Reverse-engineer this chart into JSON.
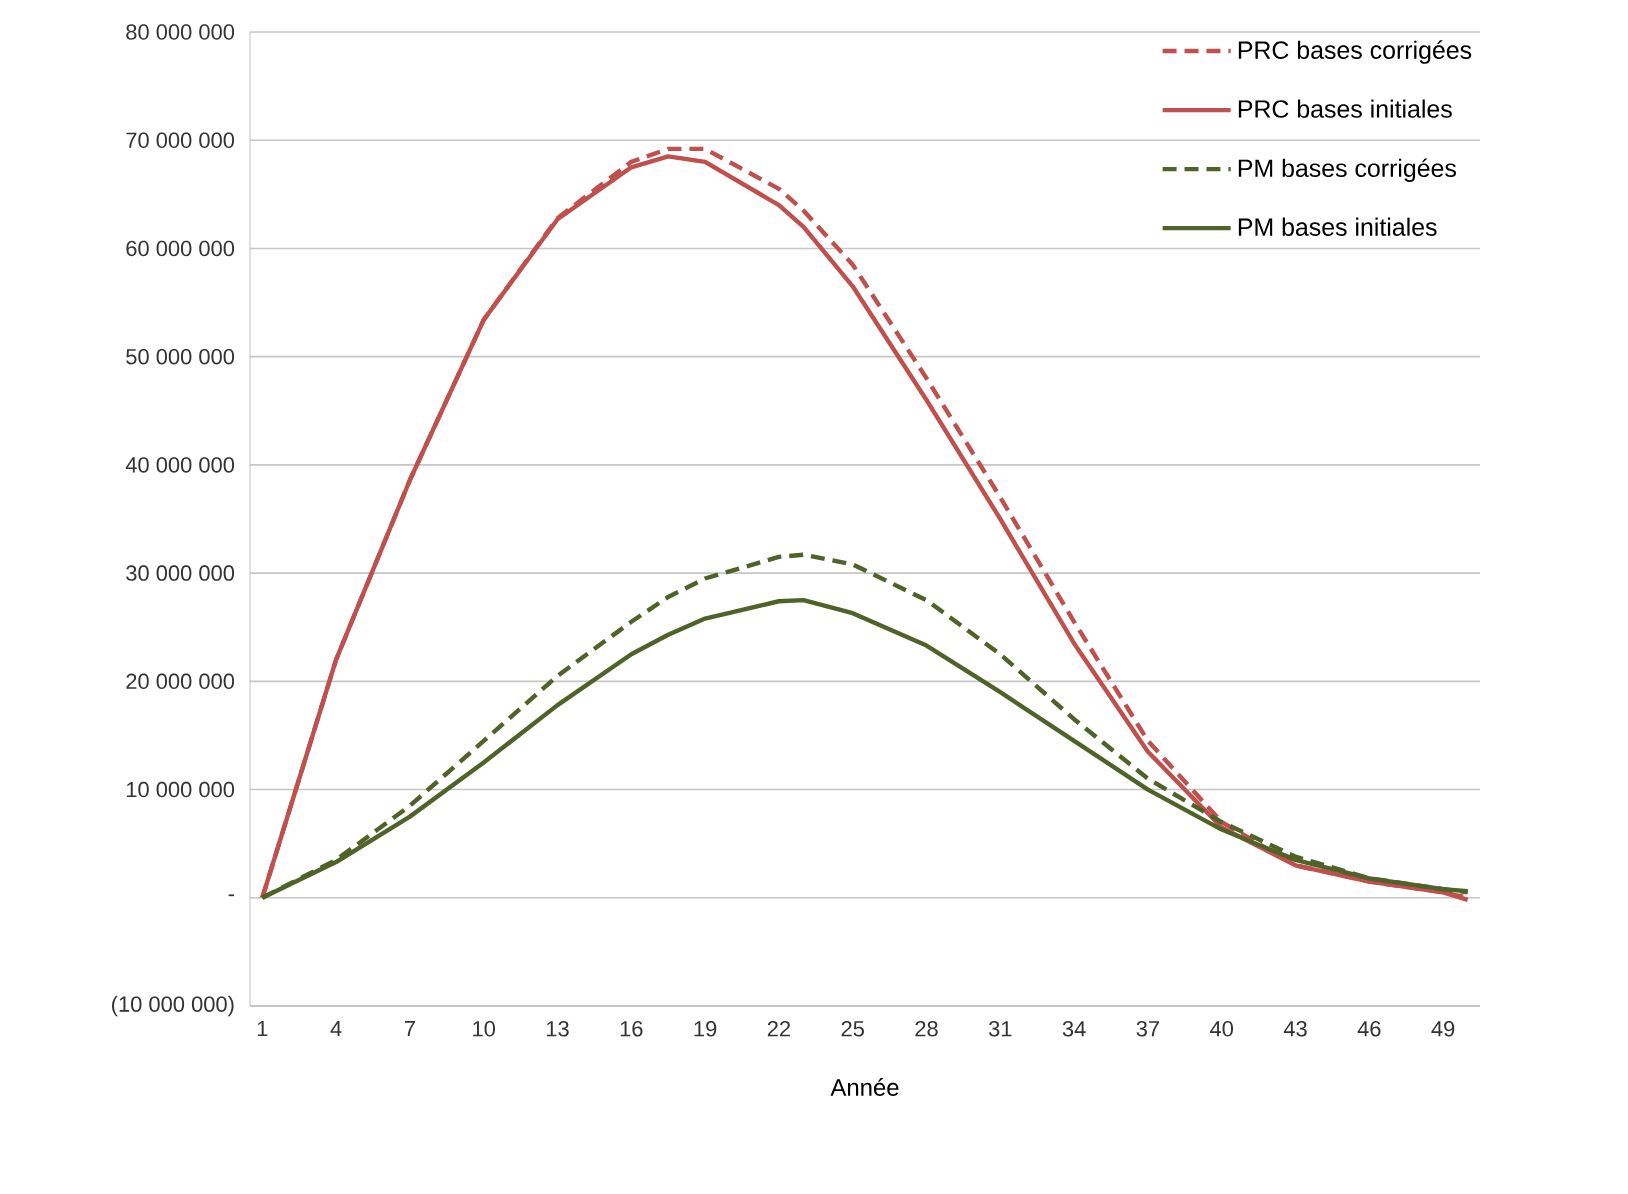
{
  "chart_data": {
    "type": "line",
    "xlabel": "Année",
    "xlim": [
      0.5,
      50.5
    ],
    "xticks": [
      1,
      4,
      7,
      10,
      13,
      16,
      19,
      22,
      25,
      28,
      31,
      34,
      37,
      40,
      43,
      46,
      49
    ],
    "ylim": [
      -10000000,
      80000000
    ],
    "yticks": [
      {
        "value": -10000000,
        "label": "(10 000 000)"
      },
      {
        "value": 0,
        "label": "-"
      },
      {
        "value": 10000000,
        "label": "10 000 000"
      },
      {
        "value": 20000000,
        "label": "20 000 000"
      },
      {
        "value": 30000000,
        "label": "30 000 000"
      },
      {
        "value": 40000000,
        "label": "40 000 000"
      },
      {
        "value": 50000000,
        "label": "50 000 000"
      },
      {
        "value": 60000000,
        "label": "60 000 000"
      },
      {
        "value": 70000000,
        "label": "70 000 000"
      },
      {
        "value": 80000000,
        "label": "80 000 000"
      }
    ],
    "grid": "y",
    "legend": "top right",
    "marker": "none",
    "x": [
      1,
      4,
      7,
      10,
      13,
      16,
      17.5,
      19,
      22,
      23,
      25,
      28,
      31,
      34,
      37,
      40,
      43,
      46,
      49,
      50
    ],
    "series": [
      {
        "name": "PRC bases corrigées",
        "color": "#c0504d",
        "line_style": "dashed",
        "values": [
          0,
          22000000,
          38600000,
          53400000,
          62800000,
          68000000,
          69200000,
          69200000,
          65500000,
          63500000,
          58500000,
          48000000,
          37000000,
          25500000,
          14500000,
          7000000,
          3000000,
          1500000,
          500000,
          0
        ]
      },
      {
        "name": "PRC bases initiales",
        "color": "#c0504d",
        "line_style": "solid",
        "values": [
          0,
          22000000,
          38600000,
          53400000,
          62700000,
          67500000,
          68500000,
          68000000,
          64000000,
          62000000,
          56500000,
          46000000,
          35000000,
          23500000,
          13500000,
          6500000,
          3000000,
          1500000,
          500000,
          -200000
        ]
      },
      {
        "name": "PM bases corrigées",
        "color": "#4f6228",
        "line_style": "dashed",
        "values": [
          0,
          3500000,
          8500000,
          14500000,
          20500000,
          25500000,
          27800000,
          29500000,
          31500000,
          31700000,
          30800000,
          27500000,
          22500000,
          16500000,
          11000000,
          7000000,
          3800000,
          1800000,
          800000,
          500000
        ]
      },
      {
        "name": "PM bases initiales",
        "color": "#4f6228",
        "line_style": "solid",
        "values": [
          0,
          3300000,
          7500000,
          12500000,
          17800000,
          22500000,
          24300000,
          25800000,
          27400000,
          27500000,
          26300000,
          23300000,
          19000000,
          14500000,
          10000000,
          6300000,
          3500000,
          1800000,
          800000,
          600000
        ]
      }
    ]
  }
}
